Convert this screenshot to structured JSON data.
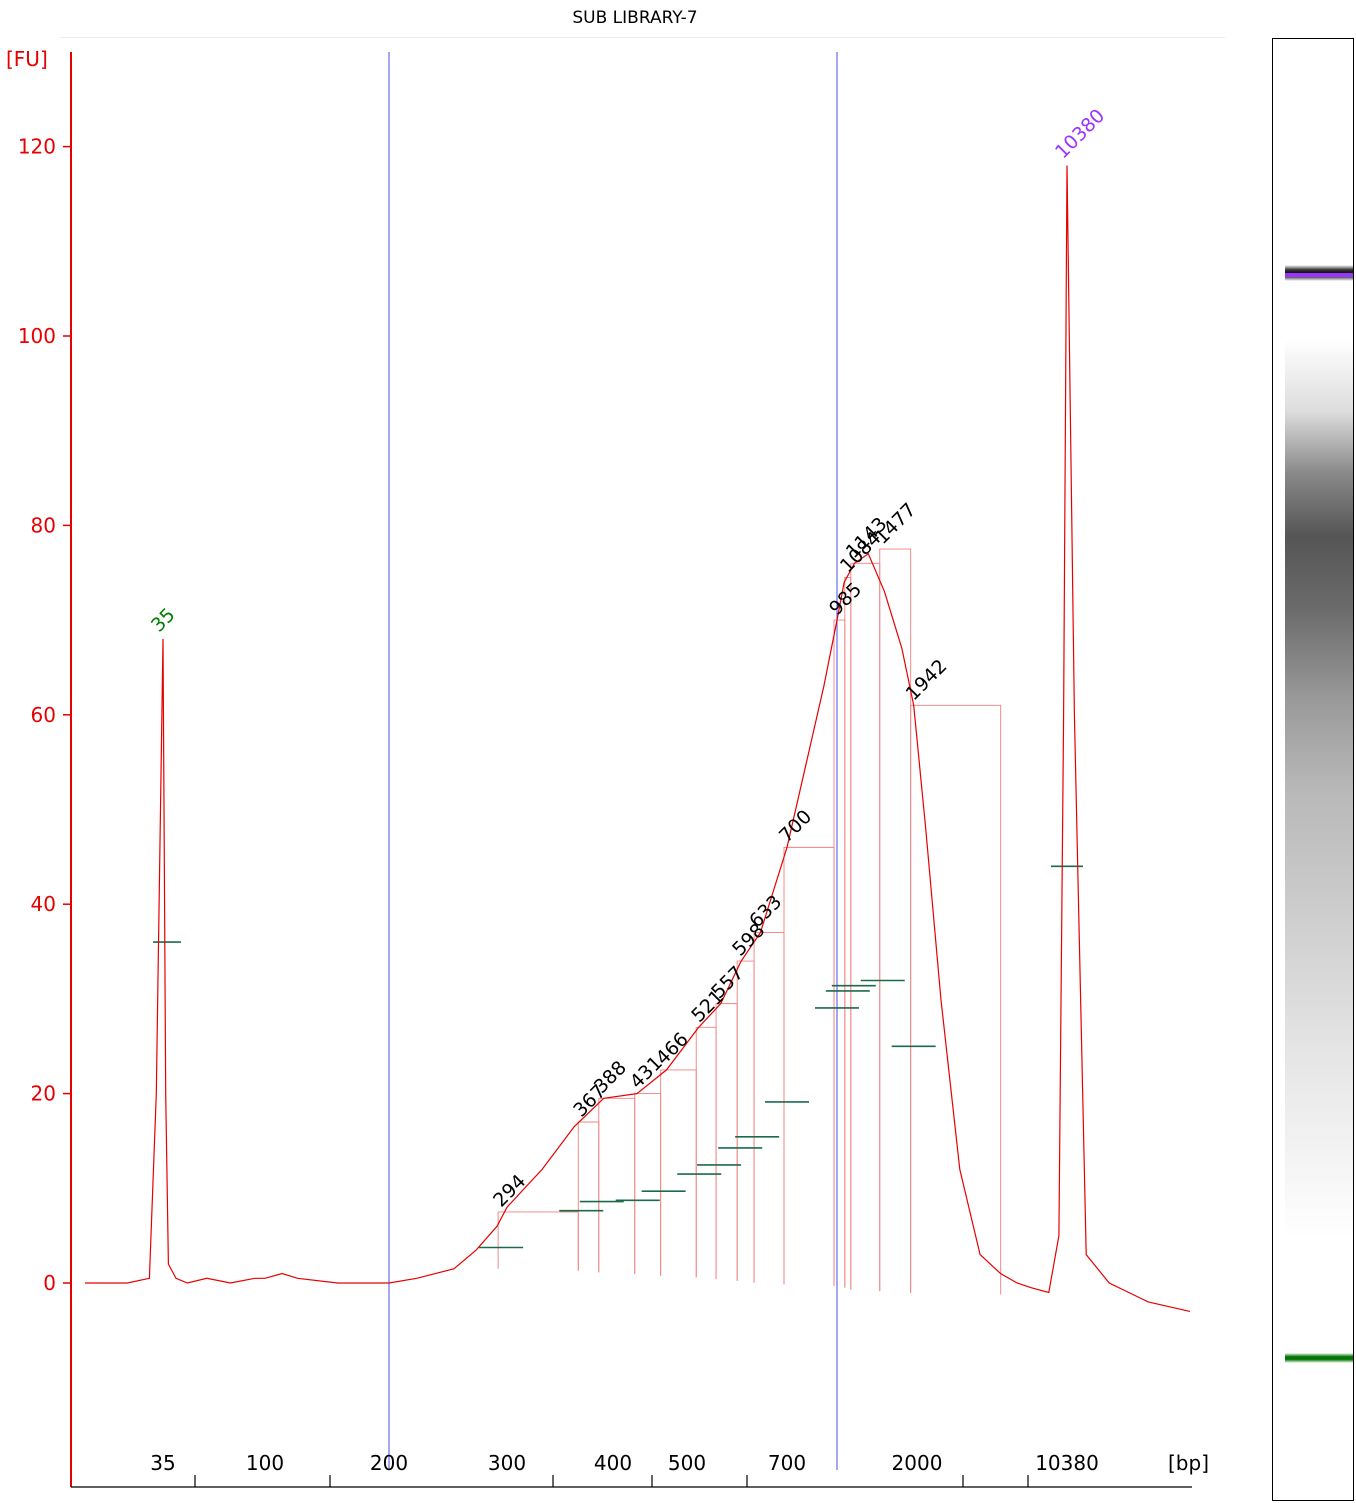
{
  "chart_data": {
    "type": "line",
    "title": "SUB LIBRARY-7",
    "ylabel": "[FU]",
    "xlabel": "[bp]",
    "ylim": [
      -15,
      130
    ],
    "yticks": [
      0,
      20,
      40,
      60,
      80,
      100,
      120
    ],
    "xtick_labels": [
      "35",
      "100",
      "200",
      "300",
      "400",
      "500",
      "700",
      "2000",
      "10380"
    ],
    "marker_lines_bp": [
      200,
      985
    ],
    "markers": [
      {
        "label": "35",
        "color": "#008000",
        "x_bp": 35,
        "y": 68
      },
      {
        "label": "10380",
        "color": "#9933ff",
        "x_bp": 10380,
        "y": 118
      }
    ],
    "peak_labels": [
      {
        "label": "294",
        "x_bp": 294,
        "y": 7.5
      },
      {
        "label": "367",
        "x_bp": 367,
        "y": 17
      },
      {
        "label": "388",
        "x_bp": 388,
        "y": 19.5
      },
      {
        "label": "431",
        "x_bp": 431,
        "y": 20
      },
      {
        "label": "466",
        "x_bp": 466,
        "y": 22.5
      },
      {
        "label": "521",
        "x_bp": 521,
        "y": 27
      },
      {
        "label": "557",
        "x_bp": 557,
        "y": 29.5
      },
      {
        "label": "598",
        "x_bp": 598,
        "y": 34
      },
      {
        "label": "633",
        "x_bp": 633,
        "y": 37
      },
      {
        "label": "700",
        "x_bp": 700,
        "y": 46
      },
      {
        "label": "985",
        "x_bp": 985,
        "y": 70
      },
      {
        "label": "1084",
        "x_bp": 1084,
        "y": 74.5
      },
      {
        "label": "1143",
        "x_bp": 1143,
        "y": 76
      },
      {
        "label": "1477",
        "x_bp": 1477,
        "y": 77.5
      },
      {
        "label": "1942",
        "x_bp": 1942,
        "y": 61
      }
    ],
    "series": [
      {
        "values_description": "",
        "x_bp": [
          25,
          30,
          33,
          34,
          35,
          36,
          37,
          40,
          45,
          55,
          70,
          90,
          100,
          110,
          120,
          150,
          180,
          200,
          220,
          250,
          270,
          290,
          300,
          330,
          360,
          390,
          430,
          470,
          520,
          560,
          600,
          640,
          700,
          800,
          900,
          985,
          1050,
          1150,
          1300,
          1500,
          1750,
          1942,
          2200,
          2600,
          3200,
          4000,
          5000,
          6000,
          7000,
          8500,
          9500,
          10000,
          10380,
          10800,
          11500,
          13000,
          16000,
          20000
        ],
        "y": [
          0,
          0,
          0.5,
          20,
          68,
          20,
          2,
          0.5,
          0,
          0.5,
          0,
          0.5,
          0.5,
          1,
          0.5,
          0,
          0,
          0,
          0.5,
          1.5,
          3.5,
          6,
          8,
          12,
          16.5,
          19.5,
          20,
          22.5,
          27,
          29.5,
          34,
          37,
          46,
          55,
          63,
          70,
          74,
          76,
          77,
          73,
          67,
          61,
          48,
          30,
          12,
          3,
          1,
          0,
          -0.5,
          -1,
          5,
          60,
          118,
          60,
          3,
          0,
          -2,
          -3
        ]
      }
    ]
  }
}
